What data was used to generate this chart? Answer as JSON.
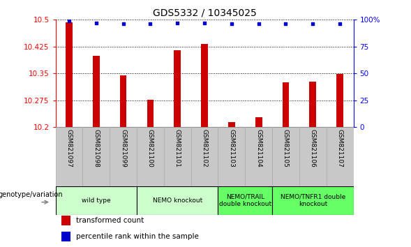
{
  "title": "GDS5332 / 10345025",
  "samples": [
    "GSM821097",
    "GSM821098",
    "GSM821099",
    "GSM821100",
    "GSM821101",
    "GSM821102",
    "GSM821103",
    "GSM821104",
    "GSM821105",
    "GSM821106",
    "GSM821107"
  ],
  "transformed_counts": [
    10.493,
    10.4,
    10.345,
    10.277,
    10.415,
    10.433,
    10.215,
    10.228,
    10.325,
    10.328,
    10.348
  ],
  "percentile_ranks": [
    99,
    97,
    96,
    96,
    97,
    97,
    96,
    96,
    96,
    96,
    96
  ],
  "ymin": 10.2,
  "ymax": 10.5,
  "yticks": [
    10.2,
    10.275,
    10.35,
    10.425,
    10.5
  ],
  "ytick_labels": [
    "10.2",
    "10.275",
    "10.35",
    "10.425",
    "10.5"
  ],
  "right_yticks": [
    0,
    25,
    50,
    75,
    100
  ],
  "right_ytick_labels": [
    "0",
    "25",
    "50",
    "75",
    "100%"
  ],
  "bar_color": "#cc0000",
  "dot_color": "#0000cc",
  "groups": [
    {
      "label": "wild type",
      "samples": [
        "GSM821097",
        "GSM821098",
        "GSM821099"
      ],
      "color": "#ccffcc"
    },
    {
      "label": "NEMO knockout",
      "samples": [
        "GSM821100",
        "GSM821101",
        "GSM821102"
      ],
      "color": "#ccffcc"
    },
    {
      "label": "NEMO/TRAIL\ndouble knockout",
      "samples": [
        "GSM821103",
        "GSM821104"
      ],
      "color": "#66ff66"
    },
    {
      "label": "NEMO/TNFR1 double\nknockout",
      "samples": [
        "GSM821105",
        "GSM821106",
        "GSM821107"
      ],
      "color": "#66ff66"
    }
  ],
  "xlabel_genotype": "genotype/variation",
  "legend_bar": "transformed count",
  "legend_dot": "percentile rank within the sample",
  "bar_color_legend": "#cc0000",
  "dot_color_legend": "#0000cc",
  "bg_color": "#ffffff",
  "tick_label_area_color": "#c8c8c8",
  "sample_box_edge": "#aaaaaa"
}
